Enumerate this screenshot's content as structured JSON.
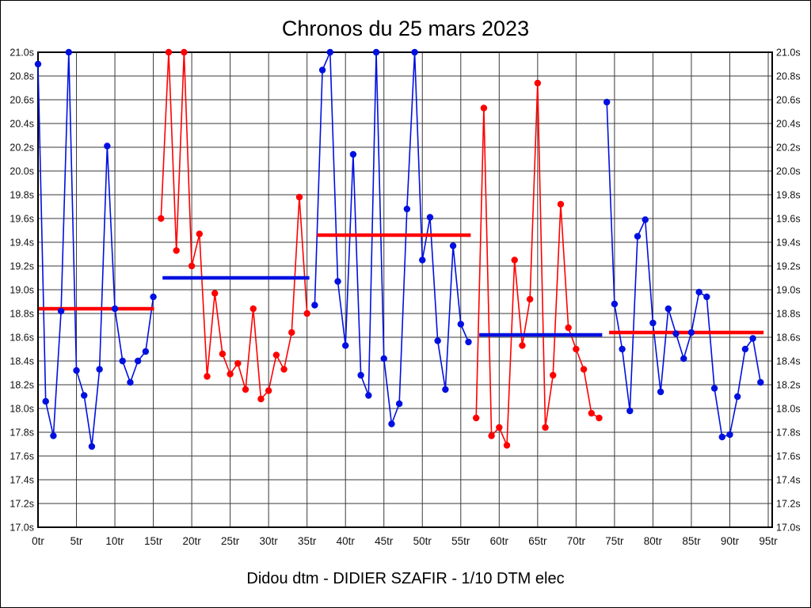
{
  "title": "Chronos du 25 mars 2023",
  "subtitle": "Didou dtm - DIDIER SZAFIR - 1/10 DTM elec",
  "colors": {
    "blue_series": "#0010e0",
    "red_series": "#ff0000",
    "grid": "#3a3a3a",
    "frame": "#000000",
    "text": "#111111",
    "background": "#ffffff"
  },
  "chart_data": {
    "type": "line",
    "title": "Chronos du 25 mars 2023",
    "subtitle": "Didou dtm - DIDIER SZAFIR - 1/10 DTM elec",
    "x_unit": "tr",
    "y_unit": "s",
    "xlim": [
      0,
      95.5
    ],
    "ylim": [
      17.0,
      21.0
    ],
    "y_step": 0.2,
    "x_tick_step": 5,
    "grid": true,
    "clip_max": 21.0,
    "x_tick_labels": [
      "0tr",
      "5tr",
      "10tr",
      "15tr",
      "20tr",
      "25tr",
      "30tr",
      "35tr",
      "40tr",
      "45tr",
      "50tr",
      "55tr",
      "60tr",
      "65tr",
      "70tr",
      "75tr",
      "80tr",
      "85tr",
      "90tr",
      "95tr"
    ],
    "y_tick_labels": [
      "21.0s",
      "20.8s",
      "20.6s",
      "20.4s",
      "20.2s",
      "20.0s",
      "19.8s",
      "19.6s",
      "19.4s",
      "19.2s",
      "19.0s",
      "18.8s",
      "18.6s",
      "18.4s",
      "18.2s",
      "18.0s",
      "17.8s",
      "17.6s",
      "17.4s",
      "17.2s",
      "17.0s"
    ],
    "series": [
      {
        "name": "stint-1-lap-times",
        "color": "blue",
        "start_lap": 0,
        "times": [
          20.9,
          18.06,
          17.77,
          18.82,
          21.0,
          18.32,
          18.11,
          17.68,
          18.33,
          20.21,
          18.84,
          18.4,
          18.22,
          18.4,
          18.48,
          18.94
        ]
      },
      {
        "name": "stint-2-lap-times",
        "color": "red",
        "start_lap": 16,
        "times": [
          19.6,
          21.0,
          19.33,
          21.0,
          19.2,
          19.47,
          18.27,
          18.97,
          18.46,
          18.29,
          18.38,
          18.16,
          18.84,
          18.08,
          18.15,
          18.45,
          18.33,
          18.64,
          19.78,
          18.8
        ]
      },
      {
        "name": "stint-3-lap-times",
        "color": "blue",
        "start_lap": 36,
        "times": [
          18.87,
          20.85,
          21.0,
          19.07,
          18.53,
          20.14,
          18.28,
          18.11,
          21.0,
          18.42,
          17.87,
          18.04,
          19.68,
          21.0,
          19.25,
          19.61,
          18.57,
          18.16,
          19.37,
          18.71,
          18.56
        ]
      },
      {
        "name": "stint-4-lap-times",
        "color": "red",
        "start_lap": 57,
        "times": [
          17.92,
          20.53,
          17.77,
          17.84,
          17.69,
          19.25,
          18.53,
          18.92,
          20.74,
          17.84,
          18.28,
          19.72,
          18.68,
          18.5,
          18.33,
          17.96,
          17.92
        ]
      },
      {
        "name": "stint-5-lap-times",
        "color": "blue",
        "start_lap": 74,
        "times": [
          20.58,
          18.88,
          18.5,
          17.98,
          19.45,
          19.59,
          18.72,
          18.14,
          18.84,
          18.63,
          18.42,
          18.64,
          18.98,
          18.94,
          18.17,
          17.76,
          17.78,
          18.1,
          18.5,
          18.59,
          18.22
        ]
      }
    ],
    "averages": [
      {
        "name": "stint-1-average-line",
        "color": "red",
        "value": 18.84,
        "from_lap": 0.1,
        "to_lap": 15.1
      },
      {
        "name": "stint-2-average-line",
        "color": "blue",
        "value": 19.1,
        "from_lap": 16.2,
        "to_lap": 35.3
      },
      {
        "name": "stint-3-average-line",
        "color": "red",
        "value": 19.46,
        "from_lap": 36.3,
        "to_lap": 56.3
      },
      {
        "name": "stint-4-average-line",
        "color": "blue",
        "value": 18.62,
        "from_lap": 57.4,
        "to_lap": 73.4
      },
      {
        "name": "stint-5-average-line",
        "color": "red",
        "value": 18.64,
        "from_lap": 74.3,
        "to_lap": 94.4
      }
    ]
  }
}
